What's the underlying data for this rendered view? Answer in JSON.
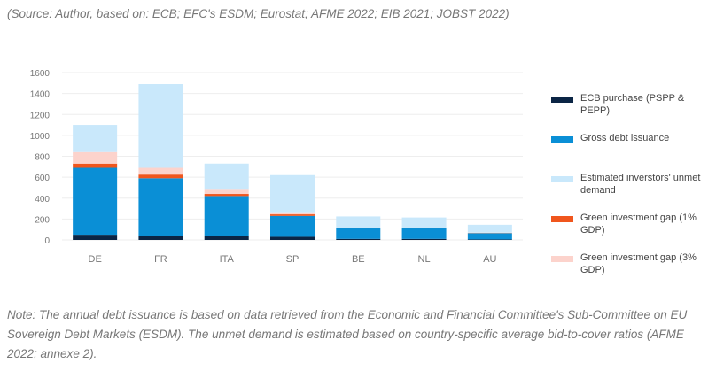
{
  "source": "(Source: Author, based on: ECB; EFC's ESDM; Eurostat; AFME 2022; EIB 2021; JOBST 2022)",
  "note": "Note: The annual debt issuance is based on data retrieved from the Economic and Financial Committee's Sub-Committee on EU Sovereign Debt Markets (ESDM). The unmet demand is estimated based on country-specific average bid-to-cover ratios (AFME 2022; annexe 2).",
  "chart_data": {
    "type": "bar",
    "stacked": true,
    "categories": [
      "DE",
      "FR",
      "ITA",
      "SP",
      "BE",
      "NL",
      "AU"
    ],
    "ylim": [
      0,
      1600
    ],
    "yticks": [
      "0",
      "200",
      "400",
      "600",
      "800",
      "1000",
      "1200",
      "1400",
      "1600"
    ],
    "grid": true,
    "legend_placement": "right",
    "series": [
      {
        "name": "ECB purchase (PSPP & PEPP)",
        "color": "#0b2545",
        "values": [
          50,
          40,
          40,
          30,
          10,
          10,
          5
        ]
      },
      {
        "name": "Gross debt issuance",
        "color": "#0a8fd6",
        "values": [
          640,
          550,
          380,
          200,
          100,
          100,
          60
        ]
      },
      {
        "name": "Green investment gap (1% GDP)",
        "color": "#f0561d",
        "values": [
          40,
          35,
          20,
          15,
          2,
          2,
          2
        ]
      },
      {
        "name": "Green investment gap (3% GDP)",
        "color": "#fcd3cc",
        "values": [
          110,
          65,
          40,
          20,
          6,
          6,
          3
        ]
      },
      {
        "name": "Estimated inverstors' unmet demand",
        "color": "#c9e8fb",
        "values": [
          260,
          800,
          250,
          355,
          107,
          97,
          75
        ]
      }
    ],
    "legend_order": [
      0,
      1,
      4,
      2,
      3
    ]
  }
}
